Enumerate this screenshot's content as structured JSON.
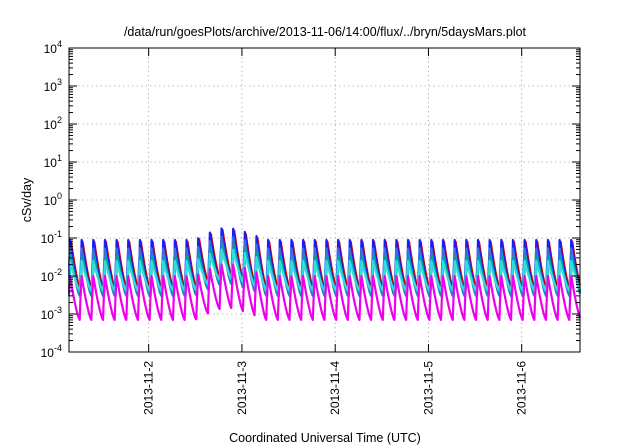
{
  "chart_data": {
    "type": "line",
    "title": "/data/run/goesPlots/archive/2013-11-06/14:00/flux/../bryn/5daysMars.plot",
    "xlabel": "Coordinated Universal Time (UTC)",
    "ylabel": "cSv/day",
    "y_scale": "log",
    "ylim": [
      0.0001,
      10000
    ],
    "y_ticks": [
      {
        "base": "10",
        "exp": "-4"
      },
      {
        "base": "10",
        "exp": "-3"
      },
      {
        "base": "10",
        "exp": "-2"
      },
      {
        "base": "10",
        "exp": "-1"
      },
      {
        "base": "10",
        "exp": "0"
      },
      {
        "base": "10",
        "exp": "1"
      },
      {
        "base": "10",
        "exp": "2"
      },
      {
        "base": "10",
        "exp": "3"
      },
      {
        "base": "10",
        "exp": "4"
      }
    ],
    "xlim": [
      "2013-11-01 03:30",
      "2013-11-06 15:00"
    ],
    "x_ticks": [
      "2013-11-2",
      "2013-11-3",
      "2013-11-4",
      "2013-11-5",
      "2013-11-6"
    ],
    "grid": true,
    "legend": "none",
    "oscillation": {
      "period_hours": 3,
      "enhancement": {
        "start": "2013-11-02 12:00",
        "peak": "2013-11-02 20:00",
        "end": "2013-11-03 06:00",
        "factor": 2.2
      }
    },
    "series": [
      {
        "color": "#cc0000",
        "peak": 0.1,
        "trough": 0.004
      },
      {
        "color": "#1a1aff",
        "peak": 0.09,
        "trough": 0.003
      },
      {
        "color": "#3a6fd8",
        "peak": 0.065,
        "trough": 0.003
      },
      {
        "color": "#00a0b0",
        "peak": 0.04,
        "trough": 0.003
      },
      {
        "color": "#33dddd",
        "peak": 0.025,
        "trough": 0.004
      },
      {
        "color": "#ee00ee",
        "peak": 0.012,
        "trough": 0.0007
      }
    ]
  }
}
